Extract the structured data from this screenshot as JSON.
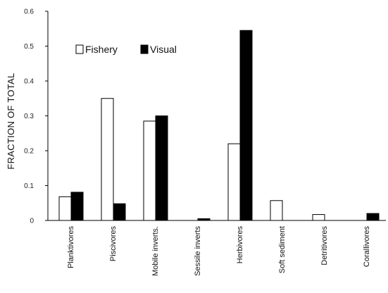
{
  "chart_data": {
    "type": "bar",
    "title": "",
    "xlabel": "",
    "ylabel": "FRACTION OF TOTAL",
    "ylim": [
      0,
      0.6
    ],
    "yticks": [
      0,
      0.1,
      0.2,
      0.3,
      0.4,
      0.5,
      0.6
    ],
    "ytick_labels": [
      "0",
      "0.1",
      "0.2",
      "0.3",
      "0.4",
      "0.5",
      "0.6"
    ],
    "grid": false,
    "legend_position": "top-left",
    "categories": [
      "Planktivores",
      "Piscivores",
      "Mobile inverts.",
      "Sessile inverts",
      "Herbivores",
      "Soft sediment",
      "Detritivores",
      "Corallivores"
    ],
    "series": [
      {
        "name": "Fishery",
        "color": "#ffffff",
        "stroke": "#000000",
        "values": [
          0.068,
          0.35,
          0.285,
          0.0,
          0.22,
          0.057,
          0.017,
          0.0
        ]
      },
      {
        "name": "Visual",
        "color": "#000000",
        "stroke": "#000000",
        "values": [
          0.081,
          0.048,
          0.3,
          0.005,
          0.545,
          0.0,
          0.0,
          0.02
        ]
      }
    ]
  }
}
